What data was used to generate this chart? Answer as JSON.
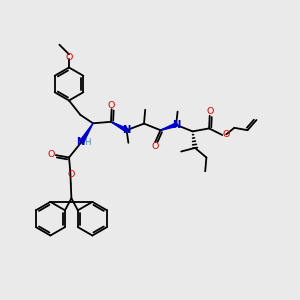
{
  "bg_hex": "#eaeaea",
  "line_color": "#000000",
  "lw": 1.3,
  "red": "#dd0000",
  "blue": "#0000cc",
  "teal": "#4488aa",
  "xlim": [
    0,
    10
  ],
  "ylim": [
    0,
    10
  ]
}
